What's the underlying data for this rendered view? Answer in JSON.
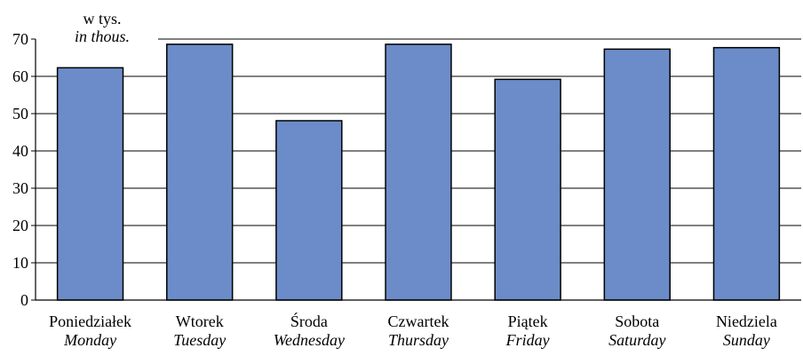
{
  "chart_data": {
    "type": "bar",
    "unit_label": {
      "pl": "w tys.",
      "en": "in thous."
    },
    "categories": [
      {
        "pl": "Poniedziałek",
        "en": "Monday"
      },
      {
        "pl": "Wtorek",
        "en": "Tuesday"
      },
      {
        "pl": "Środa",
        "en": "Wednesday"
      },
      {
        "pl": "Czwartek",
        "en": "Thursday"
      },
      {
        "pl": "Piątek",
        "en": "Friday"
      },
      {
        "pl": "Sobota",
        "en": "Saturday"
      },
      {
        "pl": "Niedziela",
        "en": "Sunday"
      }
    ],
    "values": [
      62.3,
      68.6,
      48.1,
      68.6,
      59.2,
      67.3,
      67.7
    ],
    "ylim": [
      0,
      70
    ],
    "yticks": [
      0,
      10,
      20,
      30,
      40,
      50,
      60,
      70
    ],
    "grid": true,
    "legend": "none",
    "colors": {
      "bar_fill": "#6b8cc8",
      "bar_stroke": "#000000",
      "grid": "#000000",
      "axis": "#000000"
    }
  }
}
